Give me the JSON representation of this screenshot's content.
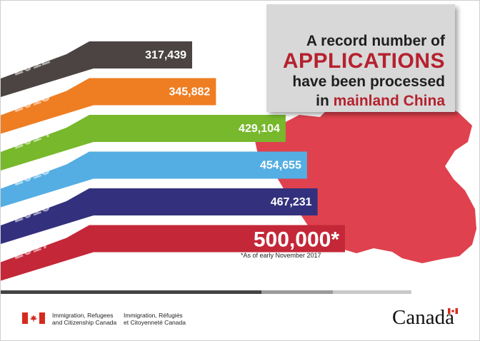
{
  "colors": {
    "y2012": "#4b4442",
    "y2013": "#ef7d22",
    "y2014": "#77b82c",
    "y2015": "#54aee3",
    "y2016": "#33317d",
    "y2017": "#c42738",
    "accent": "#b5212e",
    "map": "#e0414e"
  },
  "header": {
    "line1": "A record number of",
    "line2": "APPLICATIONS",
    "line3": "have been processed",
    "line4_prefix": "in",
    "line4_accent": "mainland China"
  },
  "chart_data": {
    "type": "bar",
    "orientation": "horizontal",
    "categories": [
      "2012",
      "2013",
      "2014",
      "2015",
      "2016",
      "2017"
    ],
    "values": [
      317439,
      345882,
      429104,
      454655,
      467231,
      500000
    ],
    "value_labels": [
      "317,439",
      "345,882",
      "429,104",
      "454,655",
      "467,231",
      "500,000*"
    ],
    "annotations": [
      "*As of early November 2017"
    ],
    "background_shape": "map of China"
  },
  "footer": {
    "dept_en": "Immigration, Refugees\nand Citizenship Canada",
    "dept_fr": "Immigration, Réfugiés\net Citoyenneté Canada",
    "wordmark": "Canada"
  }
}
